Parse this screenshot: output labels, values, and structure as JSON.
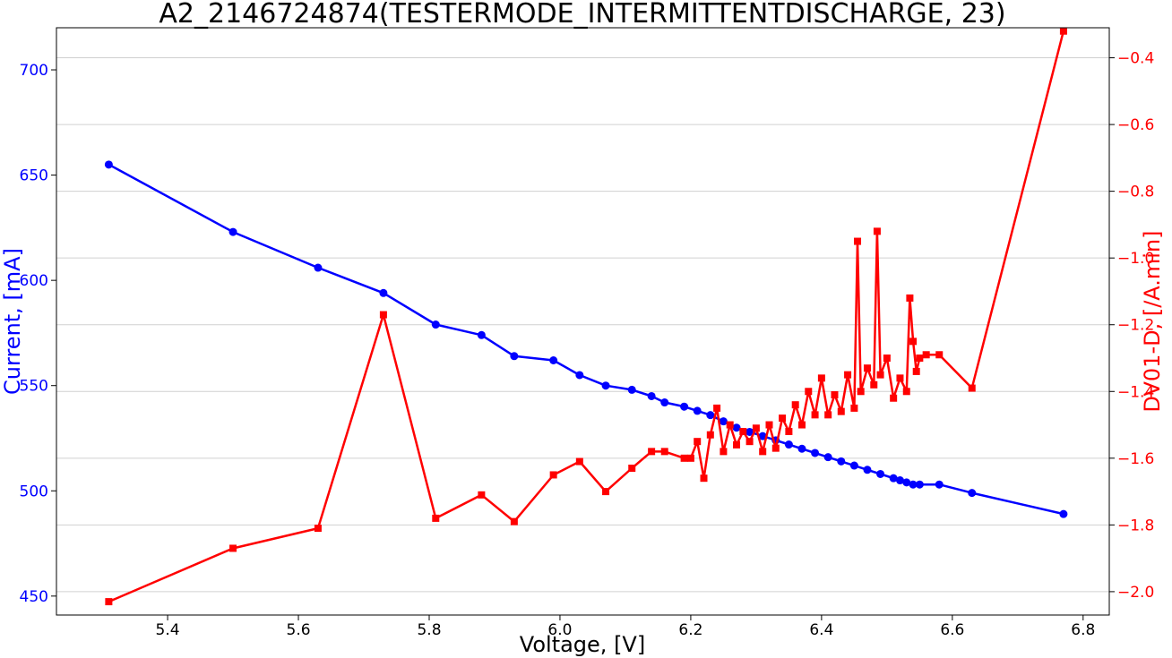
{
  "chart_data": {
    "type": "line",
    "title": "A2_2146724874(TESTERMODE_INTERMITTENTDISCHARGE, 23)",
    "xlabel": "Voltage, [V]",
    "ylabel_left": "Current, [mA]",
    "ylabel_right": "DV01-D, [/A.min]",
    "xlim": [
      5.23,
      6.84
    ],
    "ylim_left": [
      441,
      720
    ],
    "ylim_right": [
      -2.07,
      -0.31
    ],
    "x_ticks": [
      5.4,
      5.6,
      5.8,
      6.0,
      6.2,
      6.4,
      6.6,
      6.8
    ],
    "x_tick_labels": [
      "5.4",
      "5.6",
      "5.8",
      "6.0",
      "6.2",
      "6.4",
      "6.6",
      "6.8"
    ],
    "y_left_ticks": [
      450,
      500,
      550,
      600,
      650,
      700
    ],
    "y_left_tick_labels": [
      "450",
      "500",
      "550",
      "600",
      "650",
      "700"
    ],
    "y_right_ticks": [
      -2.0,
      -1.8,
      -1.6,
      -1.4,
      -1.2,
      -1.0,
      -0.8,
      -0.6,
      -0.4
    ],
    "y_right_tick_labels": [
      "−2.0",
      "−1.8",
      "−1.6",
      "−1.4",
      "−1.2",
      "−1.0",
      "−0.8",
      "−0.6",
      "−0.4"
    ],
    "grid": "horizontal (right axis)",
    "colors": {
      "current": "#0000ff",
      "dv": "#ff0000"
    },
    "series": [
      {
        "axis": "left",
        "marker": "circle",
        "x": [
          5.31,
          5.5,
          5.63,
          5.73,
          5.81,
          5.88,
          5.93,
          5.99,
          6.03,
          6.07,
          6.11,
          6.14,
          6.16,
          6.19,
          6.21,
          6.23,
          6.25,
          6.27,
          6.29,
          6.31,
          6.33,
          6.35,
          6.37,
          6.39,
          6.41,
          6.43,
          6.45,
          6.47,
          6.49,
          6.51,
          6.52,
          6.53,
          6.54,
          6.55,
          6.58,
          6.63,
          6.77
        ],
        "y": [
          655,
          623,
          606,
          594,
          579,
          574,
          564,
          562,
          555,
          550,
          548,
          545,
          542,
          540,
          538,
          536,
          533,
          530,
          528,
          526,
          524,
          522,
          520,
          518,
          516,
          514,
          512,
          510,
          508,
          506,
          505,
          504,
          503,
          503,
          503,
          499,
          489
        ]
      },
      {
        "axis": "right",
        "marker": "square",
        "x": [
          5.31,
          5.5,
          5.63,
          5.73,
          5.81,
          5.88,
          5.93,
          5.99,
          6.03,
          6.07,
          6.11,
          6.14,
          6.16,
          6.19,
          6.2,
          6.21,
          6.22,
          6.23,
          6.24,
          6.25,
          6.26,
          6.27,
          6.28,
          6.29,
          6.3,
          6.31,
          6.32,
          6.33,
          6.34,
          6.35,
          6.36,
          6.37,
          6.38,
          6.39,
          6.4,
          6.41,
          6.42,
          6.43,
          6.44,
          6.45,
          6.455,
          6.46,
          6.47,
          6.48,
          6.485,
          6.49,
          6.5,
          6.51,
          6.52,
          6.53,
          6.535,
          6.54,
          6.545,
          6.55,
          6.56,
          6.58,
          6.63,
          6.77
        ],
        "y": [
          -2.03,
          -1.87,
          -1.81,
          -1.17,
          -1.78,
          -1.71,
          -1.79,
          -1.65,
          -1.61,
          -1.7,
          -1.63,
          -1.58,
          -1.58,
          -1.6,
          -1.6,
          -1.55,
          -1.66,
          -1.53,
          -1.45,
          -1.58,
          -1.5,
          -1.56,
          -1.52,
          -1.55,
          -1.51,
          -1.58,
          -1.5,
          -1.57,
          -1.48,
          -1.52,
          -1.44,
          -1.5,
          -1.4,
          -1.47,
          -1.36,
          -1.47,
          -1.41,
          -1.46,
          -1.35,
          -1.45,
          -0.95,
          -1.4,
          -1.33,
          -1.38,
          -0.92,
          -1.35,
          -1.3,
          -1.42,
          -1.36,
          -1.4,
          -1.12,
          -1.25,
          -1.34,
          -1.3,
          -1.29,
          -1.29,
          -1.39,
          -0.32
        ]
      }
    ]
  }
}
